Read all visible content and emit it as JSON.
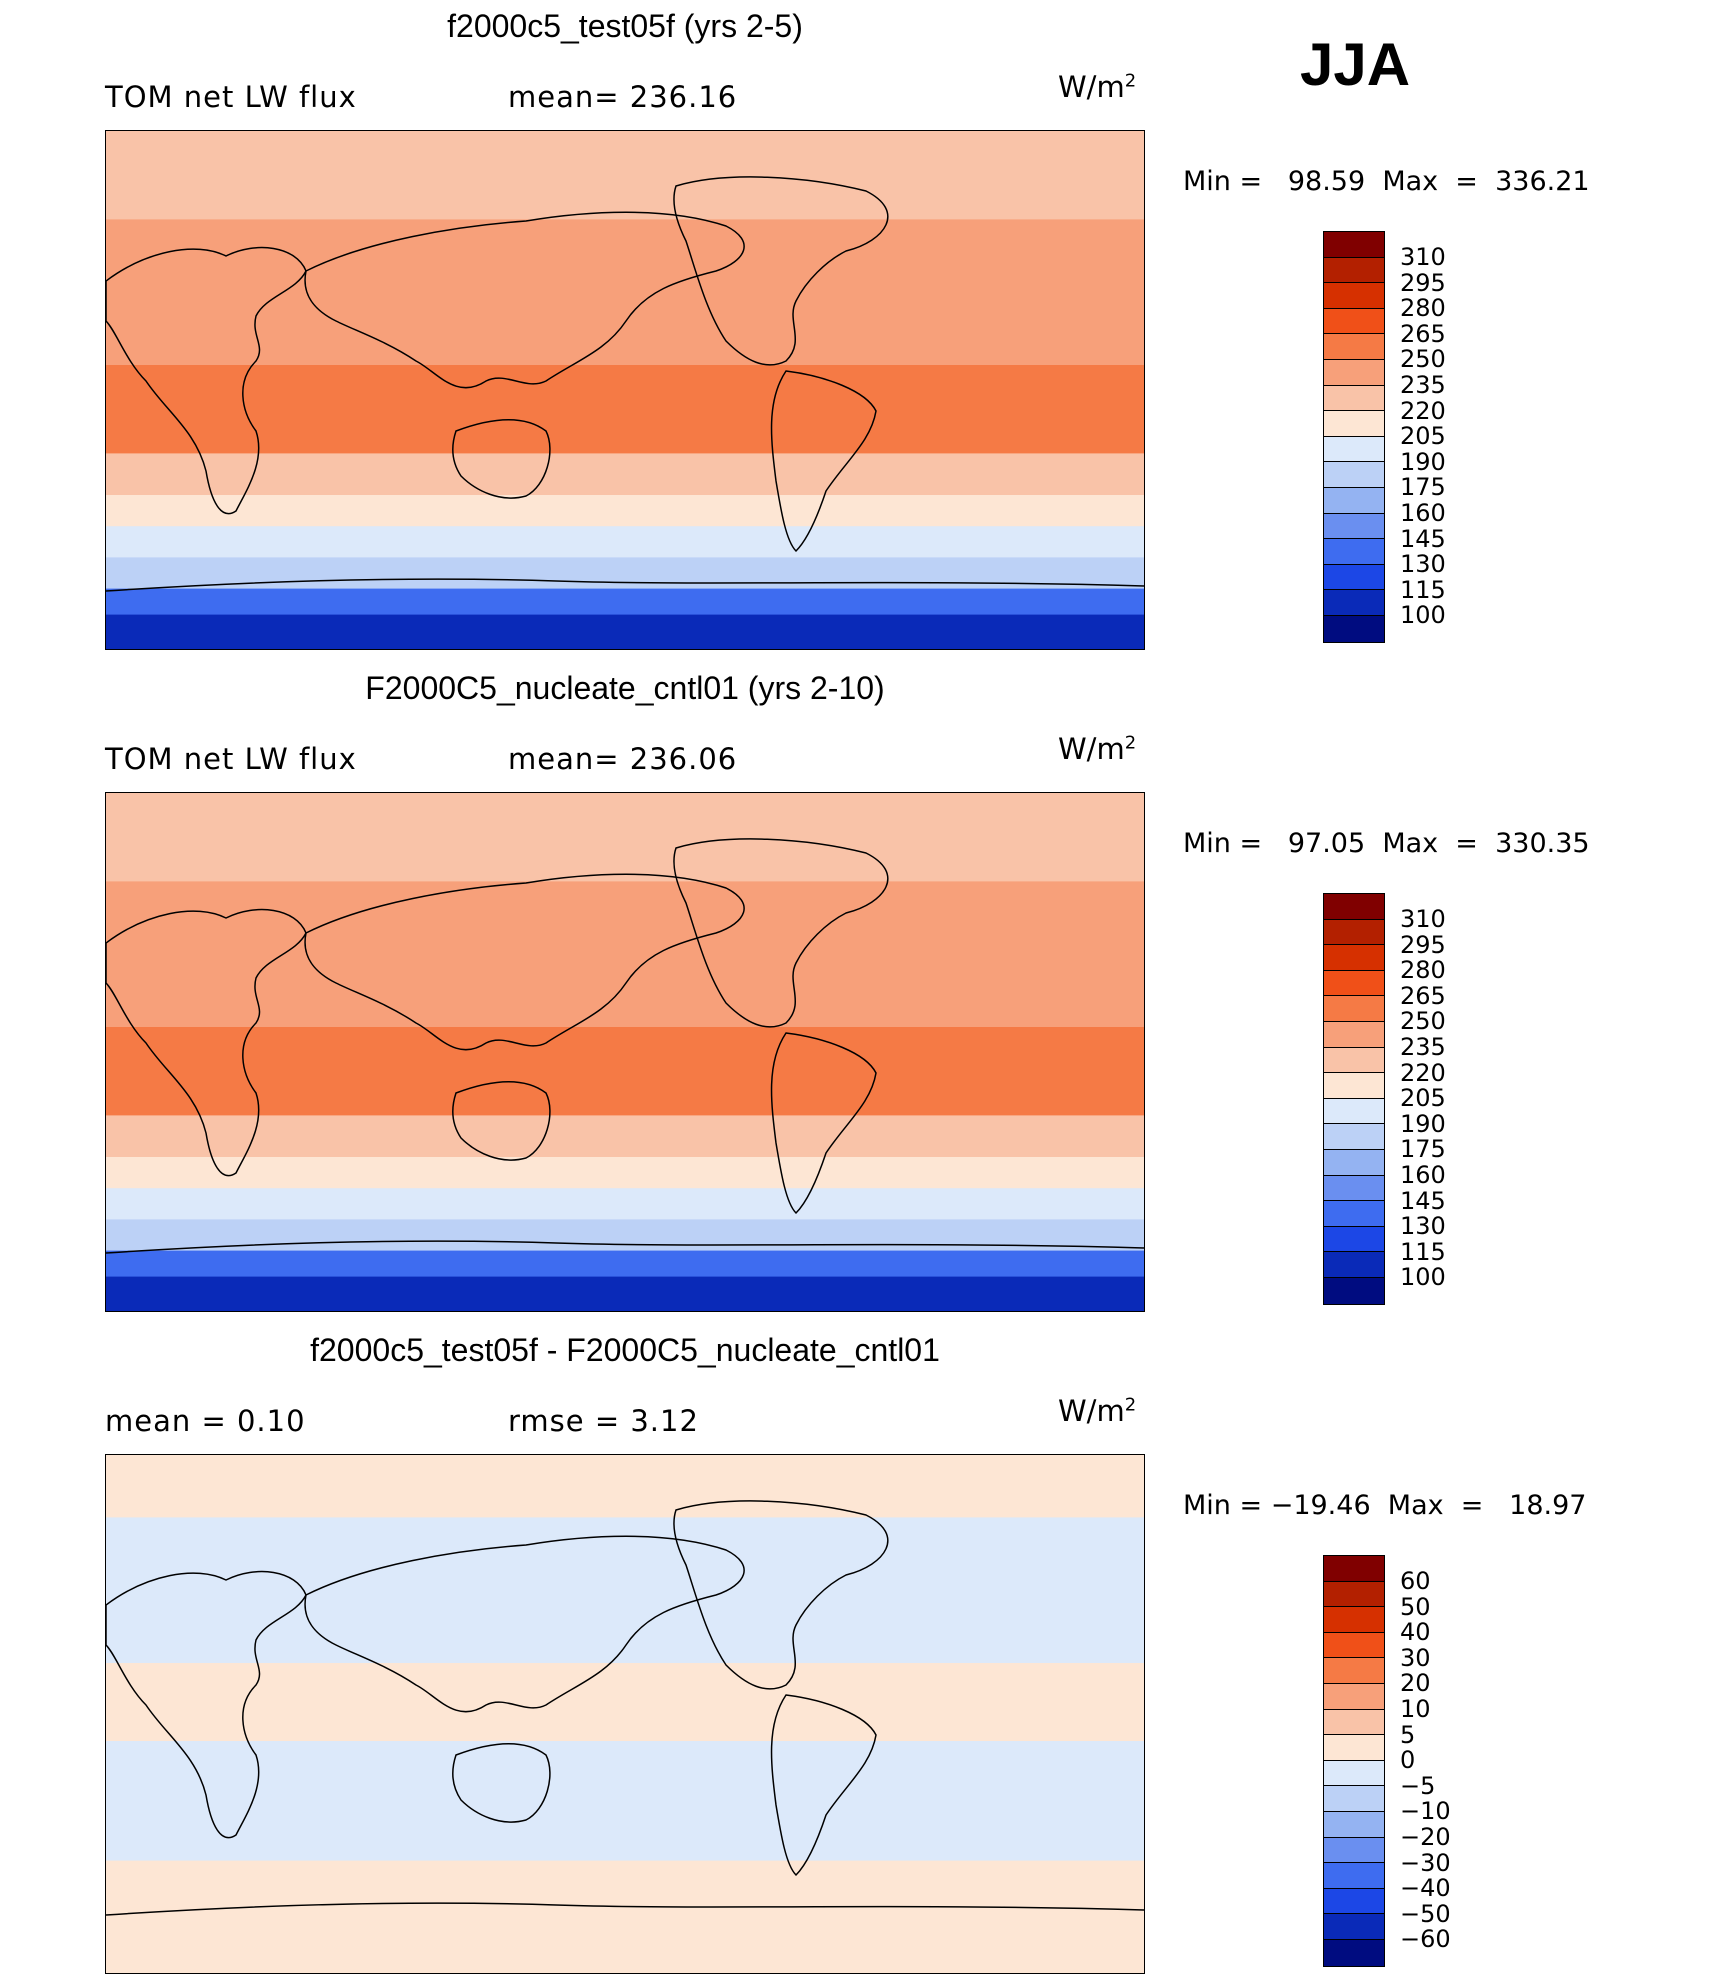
{
  "season": "JJA",
  "panels": [
    {
      "title": "f2000c5_test05f (yrs 2-5)",
      "left_label": "TOM net LW flux",
      "center_label": "mean= 236.16",
      "units": "W/m",
      "units_exp": "2",
      "minmax": "Min =   98.59  Max  =  336.21",
      "colorbar": {
        "ticks": [
          "310",
          "295",
          "280",
          "265",
          "250",
          "235",
          "220",
          "205",
          "190",
          "175",
          "160",
          "145",
          "130",
          "115",
          "100"
        ],
        "colors": [
          "#800000",
          "#b32000",
          "#d63000",
          "#f05018",
          "#f57a45",
          "#f7a07a",
          "#f9c3a8",
          "#fde6d4",
          "#dce9fa",
          "#bcd1f6",
          "#94b3f2",
          "#6a8ff0",
          "#3e6cf0",
          "#1c47e6",
          "#0a2ab8",
          "#000c80"
        ]
      },
      "map": {
        "bands": [
          {
            "top": 0.0,
            "color": "#f9c3a8"
          },
          {
            "top": 0.17,
            "color": "#f7a07a"
          },
          {
            "top": 0.45,
            "color": "#f57a45"
          },
          {
            "top": 0.62,
            "color": "#f9c3a8"
          },
          {
            "top": 0.7,
            "color": "#fde6d4"
          },
          {
            "top": 0.76,
            "color": "#dce9fa"
          },
          {
            "top": 0.82,
            "color": "#bcd1f6"
          },
          {
            "top": 0.88,
            "color": "#3e6cf0"
          },
          {
            "top": 0.93,
            "color": "#0a2ab8"
          }
        ]
      }
    },
    {
      "title": "F2000C5_nucleate_cntl01 (yrs 2-10)",
      "left_label": "TOM net LW flux",
      "center_label": "mean= 236.06",
      "units": "W/m",
      "units_exp": "2",
      "minmax": "Min =   97.05  Max  =  330.35",
      "colorbar": {
        "ticks": [
          "310",
          "295",
          "280",
          "265",
          "250",
          "235",
          "220",
          "205",
          "190",
          "175",
          "160",
          "145",
          "130",
          "115",
          "100"
        ],
        "colors": [
          "#800000",
          "#b32000",
          "#d63000",
          "#f05018",
          "#f57a45",
          "#f7a07a",
          "#f9c3a8",
          "#fde6d4",
          "#dce9fa",
          "#bcd1f6",
          "#94b3f2",
          "#6a8ff0",
          "#3e6cf0",
          "#1c47e6",
          "#0a2ab8",
          "#000c80"
        ]
      },
      "map": {
        "bands": [
          {
            "top": 0.0,
            "color": "#f9c3a8"
          },
          {
            "top": 0.17,
            "color": "#f7a07a"
          },
          {
            "top": 0.45,
            "color": "#f57a45"
          },
          {
            "top": 0.62,
            "color": "#f9c3a8"
          },
          {
            "top": 0.7,
            "color": "#fde6d4"
          },
          {
            "top": 0.76,
            "color": "#dce9fa"
          },
          {
            "top": 0.82,
            "color": "#bcd1f6"
          },
          {
            "top": 0.88,
            "color": "#3e6cf0"
          },
          {
            "top": 0.93,
            "color": "#0a2ab8"
          }
        ]
      }
    },
    {
      "title": "f2000c5_test05f - F2000C5_nucleate_cntl01",
      "left_label": "mean =     0.10",
      "center_label": "rmse =     3.12",
      "units": "W/m",
      "units_exp": "2",
      "minmax": "Min = −19.46  Max  =   18.97",
      "colorbar": {
        "ticks": [
          "60",
          "50",
          "40",
          "30",
          "20",
          "10",
          "5",
          "0",
          "−5",
          "−10",
          "−20",
          "−30",
          "−40",
          "−50",
          "−60"
        ],
        "colors": [
          "#800000",
          "#b32000",
          "#d63000",
          "#f05018",
          "#f57a45",
          "#f7a07a",
          "#f9c3a8",
          "#fde6d4",
          "#dce9fa",
          "#bcd1f6",
          "#94b3f2",
          "#6a8ff0",
          "#3e6cf0",
          "#1c47e6",
          "#0a2ab8",
          "#000c80"
        ]
      },
      "map": {
        "bands": [
          {
            "top": 0.0,
            "color": "#fde6d4"
          },
          {
            "top": 0.12,
            "color": "#dce9fa"
          },
          {
            "top": 0.4,
            "color": "#fde6d4"
          },
          {
            "top": 0.55,
            "color": "#dce9fa"
          },
          {
            "top": 0.78,
            "color": "#fde6d4"
          }
        ]
      }
    }
  ]
}
